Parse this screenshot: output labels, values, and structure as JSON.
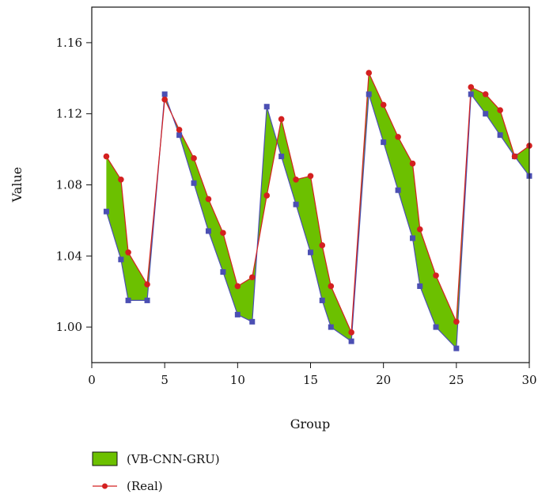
{
  "chart_data": {
    "type": "line",
    "xlabel": "Group",
    "ylabel": "Value",
    "xlim": [
      0,
      30
    ],
    "ylim": [
      0.98,
      1.18
    ],
    "xticks": [
      0,
      5,
      10,
      15,
      20,
      25,
      30
    ],
    "yticks": [
      1.0,
      1.04,
      1.08,
      1.12,
      1.16
    ],
    "ytick_labels": [
      "1.00",
      "1.04",
      "1.08",
      "1.12",
      "1.16"
    ],
    "grid": false,
    "legend_position": "bottom-left",
    "fill_between": {
      "name": "(VB-CNN-GRU)",
      "color": "#6cc000"
    },
    "series": [
      {
        "name": "(VB-CNN-GRU)",
        "color": "#4b4fb3",
        "marker": "square",
        "show_in_legend": false,
        "x": [
          1,
          2,
          2.5,
          3.8,
          5,
          6,
          7,
          8,
          9,
          10,
          11,
          12,
          13,
          14,
          15,
          15.8,
          16.4,
          17.8,
          19,
          20,
          21,
          22,
          22.5,
          23.6,
          25,
          26,
          27,
          28,
          29,
          30
        ],
        "y": [
          1.065,
          1.038,
          1.015,
          1.015,
          1.131,
          1.108,
          1.081,
          1.054,
          1.031,
          1.007,
          1.003,
          1.124,
          1.096,
          1.069,
          1.042,
          1.015,
          1.0,
          0.992,
          1.131,
          1.104,
          1.077,
          1.05,
          1.023,
          1.0,
          0.988,
          1.131,
          1.12,
          1.108,
          1.096,
          1.085
        ]
      },
      {
        "name": "(Real)",
        "color": "#d42020",
        "marker": "circle",
        "show_in_legend": true,
        "x": [
          1,
          2,
          2.5,
          3.8,
          5,
          6,
          7,
          8,
          9,
          10,
          11,
          12,
          13,
          14,
          15,
          15.8,
          16.4,
          17.8,
          19,
          20,
          21,
          22,
          22.5,
          23.6,
          25,
          26,
          27,
          28,
          29,
          30
        ],
        "y": [
          1.096,
          1.083,
          1.042,
          1.024,
          1.128,
          1.111,
          1.095,
          1.072,
          1.053,
          1.023,
          1.028,
          1.074,
          1.117,
          1.083,
          1.085,
          1.046,
          1.023,
          0.997,
          1.143,
          1.125,
          1.107,
          1.092,
          1.055,
          1.029,
          1.003,
          1.135,
          1.131,
          1.122,
          1.096,
          1.102
        ]
      }
    ]
  }
}
